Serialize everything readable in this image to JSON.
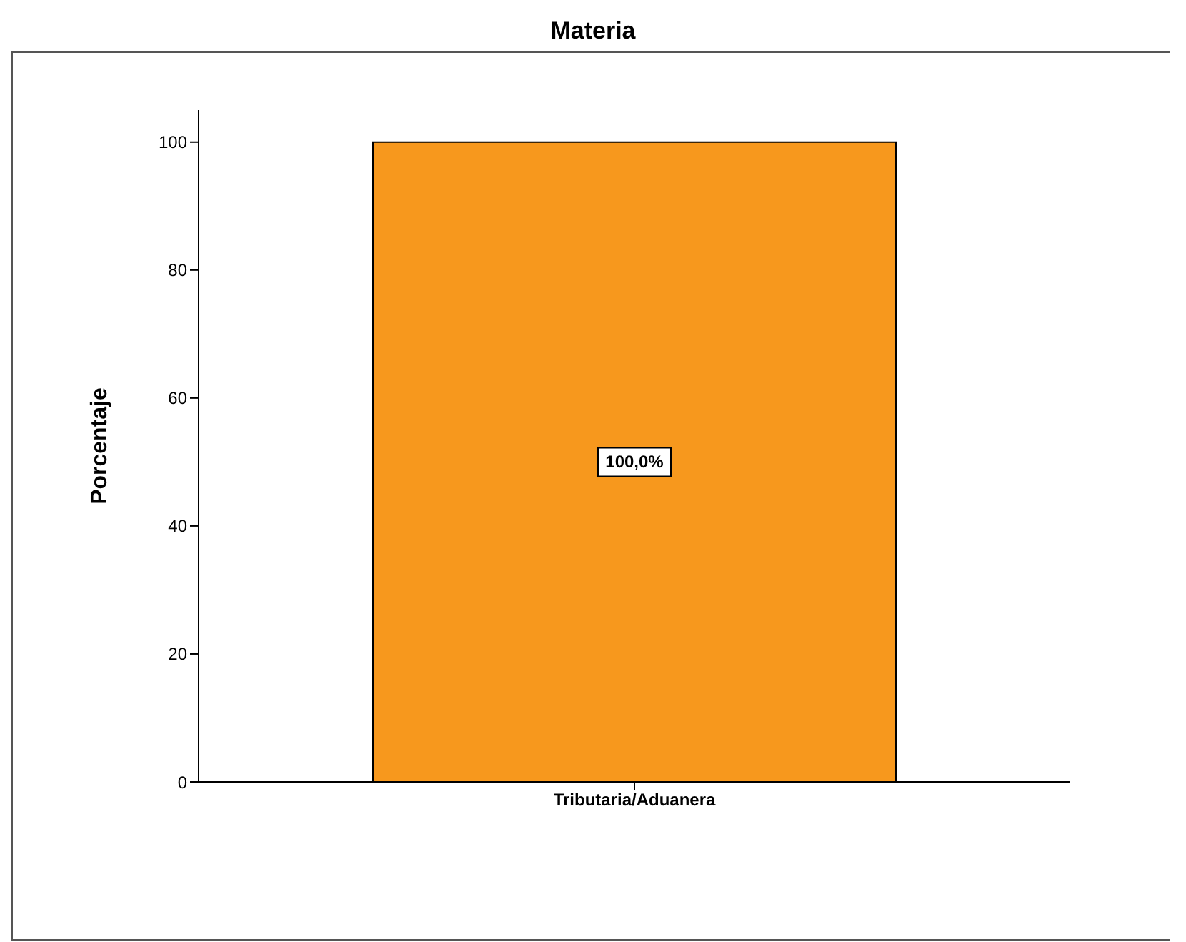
{
  "chart_data": {
    "type": "bar",
    "title": "Materia",
    "ylabel": "Porcentaje",
    "categories": [
      "Tributaria/Aduanera"
    ],
    "values": [
      100
    ],
    "color": "#f7981d",
    "value_labels": [
      "100,0%"
    ],
    "ylim": [
      0,
      105
    ],
    "yticks": [
      0,
      20,
      40,
      60,
      80,
      100
    ],
    "grid": false,
    "legend": false
  }
}
